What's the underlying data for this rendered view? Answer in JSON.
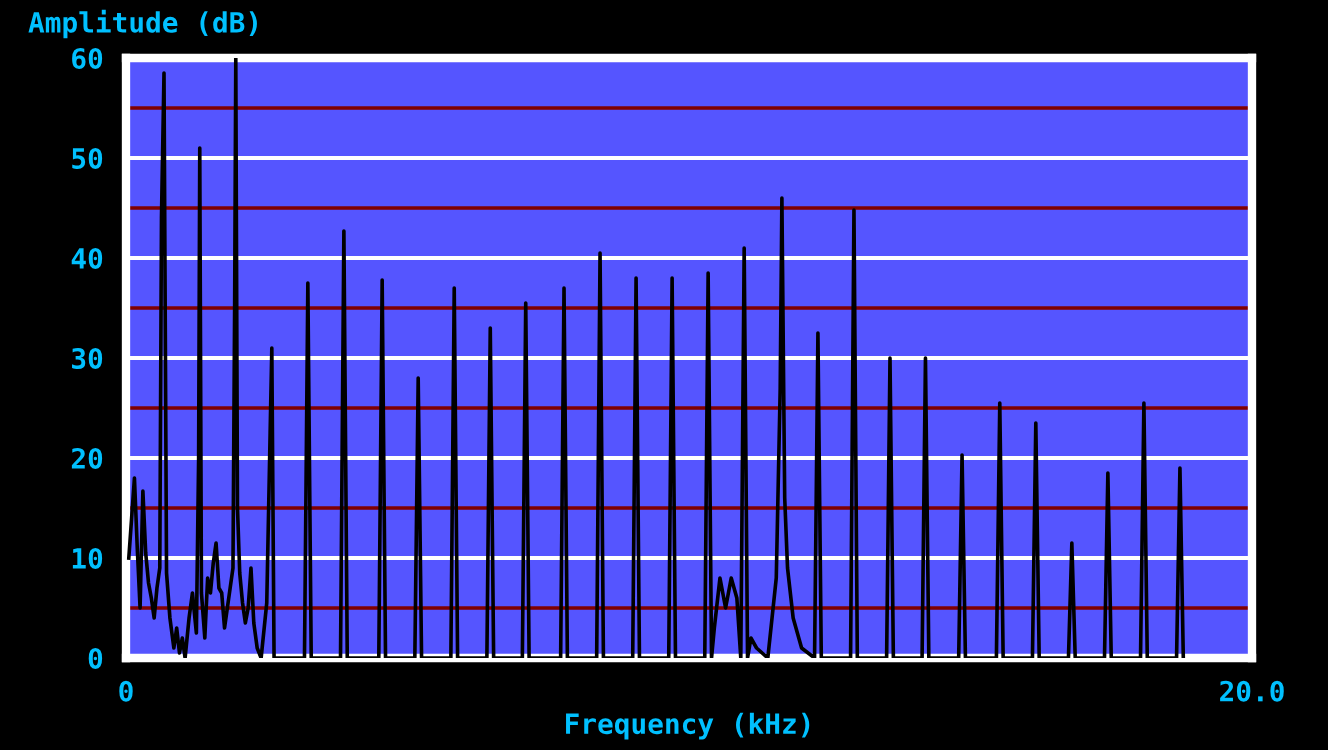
{
  "chart_data": {
    "type": "line",
    "xlabel": "Frequency (kHz)",
    "ylabel": "Amplitude (dB)",
    "xlim": [
      0,
      20
    ],
    "xticks": [
      0,
      {
        "value": 20,
        "label": "20.0"
      }
    ],
    "ylim": [
      0,
      60
    ],
    "yticks": [
      0,
      10,
      20,
      30,
      40,
      50,
      60
    ],
    "grid": "y",
    "marker": "none",
    "line_style": "solid",
    "ref_lines": [
      {
        "axis": "y",
        "value": 5,
        "color": "#800000"
      },
      {
        "axis": "y",
        "value": 15,
        "color": "#800000"
      },
      {
        "axis": "y",
        "value": 25,
        "color": "#800000"
      },
      {
        "axis": "y",
        "value": 35,
        "color": "#800000"
      },
      {
        "axis": "y",
        "value": 45,
        "color": "#800000"
      },
      {
        "axis": "y",
        "value": 55,
        "color": "#800000"
      }
    ],
    "series": [
      {
        "color": "#000000",
        "x": [
          0.05,
          0.1,
          0.15,
          0.2,
          0.25,
          0.3,
          0.35,
          0.4,
          0.45,
          0.5,
          0.55,
          0.6,
          0.63,
          0.675,
          0.72,
          0.78,
          0.85,
          0.9,
          0.95,
          1.0,
          1.05,
          1.12,
          1.18,
          1.25,
          1.29,
          1.31,
          1.34,
          1.4,
          1.45,
          1.5,
          1.55,
          1.6,
          1.65,
          1.7,
          1.75,
          1.8,
          1.85,
          1.9,
          1.93,
          1.95,
          1.98,
          2.02,
          2.07,
          2.12,
          2.17,
          2.22,
          2.27,
          2.33,
          2.4,
          2.5,
          2.56,
          2.59,
          2.63,
          3.17,
          3.23,
          3.29,
          3.81,
          3.87,
          3.93,
          4.49,
          4.55,
          4.61,
          5.13,
          5.19,
          5.25,
          5.77,
          5.83,
          5.89,
          6.41,
          6.47,
          6.53,
          7.04,
          7.1,
          7.16,
          7.72,
          7.78,
          7.84,
          8.36,
          8.42,
          8.48,
          9.0,
          9.06,
          9.12,
          9.64,
          9.7,
          9.76,
          10.28,
          10.34,
          10.4,
          10.45,
          10.55,
          10.65,
          10.75,
          10.85,
          10.92,
          10.98,
          11.04,
          11.1,
          11.2,
          11.4,
          11.55,
          11.62,
          11.65,
          11.7,
          11.75,
          11.85,
          12.0,
          12.23,
          12.29,
          12.35,
          12.87,
          12.93,
          12.99,
          13.51,
          13.57,
          13.63,
          14.14,
          14.2,
          14.26,
          14.79,
          14.85,
          14.91,
          15.46,
          15.52,
          15.58,
          16.1,
          16.16,
          16.22,
          16.74,
          16.8,
          16.86,
          17.38,
          17.44,
          17.5,
          18.02,
          18.08,
          18.14,
          18.66,
          18.72,
          18.78
        ],
        "values": [
          10,
          14,
          18,
          11,
          5,
          16.7,
          10.5,
          7.5,
          6,
          4,
          7,
          9,
          44,
          58.5,
          8.5,
          4,
          1,
          3,
          0.5,
          2,
          0,
          4,
          6.5,
          2.5,
          20,
          51,
          6.5,
          2,
          8,
          6.5,
          9.5,
          11.5,
          7,
          6.5,
          3,
          5,
          7,
          9,
          35.5,
          60,
          15,
          8.5,
          5.5,
          3.5,
          5,
          9,
          3.5,
          1,
          0,
          5.5,
          22.5,
          31,
          0,
          0,
          37.5,
          0,
          0,
          42.7,
          0,
          0,
          37.8,
          0,
          0,
          28,
          0,
          0,
          37,
          0,
          0,
          33,
          0,
          0,
          35.5,
          0,
          0,
          37,
          0,
          0,
          40.5,
          0,
          0,
          38,
          0,
          0,
          38,
          0,
          0,
          38.5,
          0,
          3,
          8,
          5,
          8,
          6,
          0,
          41,
          0,
          2,
          1,
          0,
          8,
          27,
          46,
          16,
          9,
          4,
          1,
          0,
          32.5,
          0,
          0,
          44.8,
          0,
          0,
          30,
          0,
          0,
          30,
          0,
          0,
          20.3,
          0,
          0,
          25.5,
          0,
          0,
          23.5,
          0,
          0,
          11.5,
          0,
          0,
          18.5,
          0,
          0,
          25.5,
          0,
          0,
          19,
          0
        ]
      }
    ]
  }
}
